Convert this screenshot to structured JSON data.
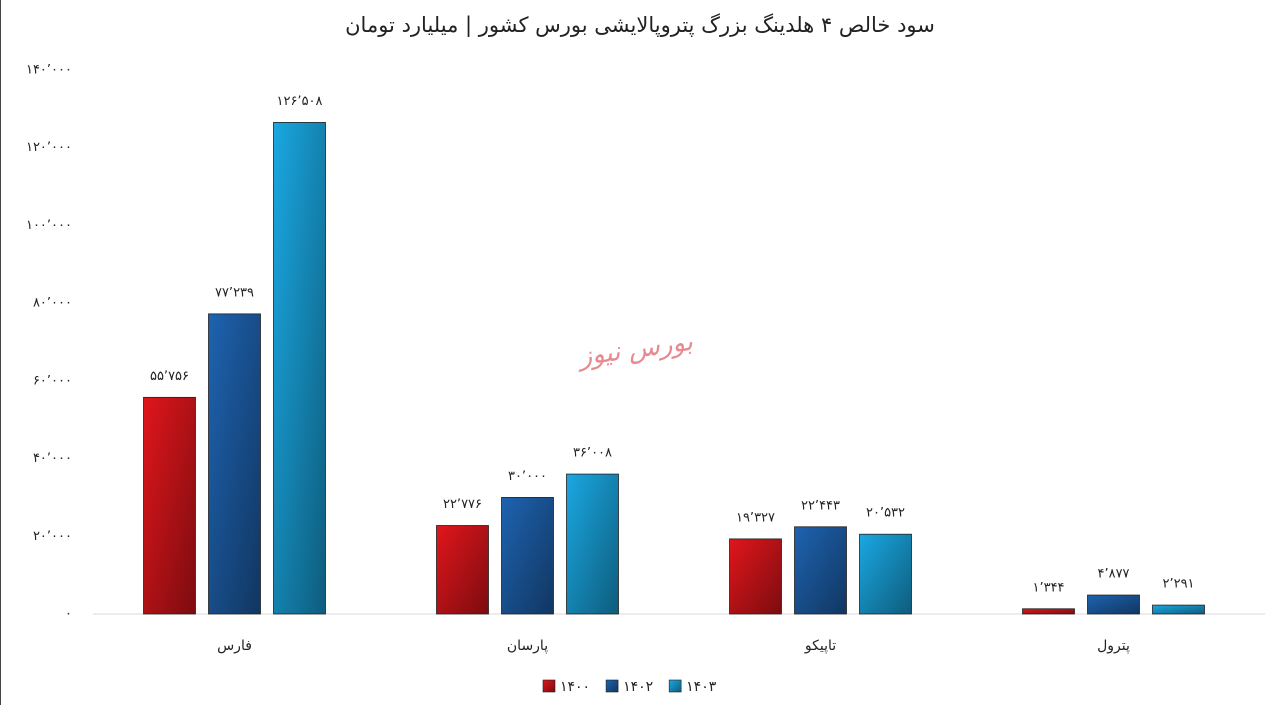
{
  "chart_data": {
    "type": "bar",
    "title": "سود خالص ۴ هلدینگ بزرگ پتروپالایشی بورس کشور | میلیارد تومان",
    "watermark": "بورس نیوز",
    "categories": [
      "فارس",
      "پارسان",
      "تاپیکو",
      "پترول"
    ],
    "series": [
      {
        "name": "۱۴۰۰",
        "color": "#e0161c",
        "values": [
          55756,
          22776,
          19327,
          1344
        ],
        "value_labels": [
          "۵۵٬۷۵۶",
          "۲۲٬۷۷۶",
          "۱۹٬۳۲۷",
          "۱٬۳۴۴"
        ]
      },
      {
        "name": "۱۴۰۲",
        "color": "#1e63b0",
        "values": [
          77239,
          30000,
          22443,
          4877
        ],
        "value_labels": [
          "۷۷٬۲۳۹",
          "۳۰٬۰۰۰",
          "۲۲٬۴۴۳",
          "۴٬۸۷۷"
        ]
      },
      {
        "name": "۱۴۰۳",
        "color": "#1aa8e2",
        "values": [
          126508,
          36008,
          20532,
          2291
        ],
        "value_labels": [
          "۱۲۶٬۵۰۸",
          "۳۶٬۰۰۸",
          "۲۰٬۵۳۲",
          "۲٬۲۹۱"
        ]
      }
    ],
    "ylim": [
      0,
      140000
    ],
    "yticks": [
      {
        "value": 0,
        "label": "۰"
      },
      {
        "value": 20000,
        "label": "۲۰٬۰۰۰"
      },
      {
        "value": 40000,
        "label": "۴۰٬۰۰۰"
      },
      {
        "value": 60000,
        "label": "۶۰٬۰۰۰"
      },
      {
        "value": 80000,
        "label": "۸۰٬۰۰۰"
      },
      {
        "value": 100000,
        "label": "۱۰۰٬۰۰۰"
      },
      {
        "value": 120000,
        "label": "۱۲۰٬۰۰۰"
      },
      {
        "value": 140000,
        "label": "۱۴۰٬۰۰۰"
      }
    ],
    "grid": false,
    "legend": "bottom"
  }
}
